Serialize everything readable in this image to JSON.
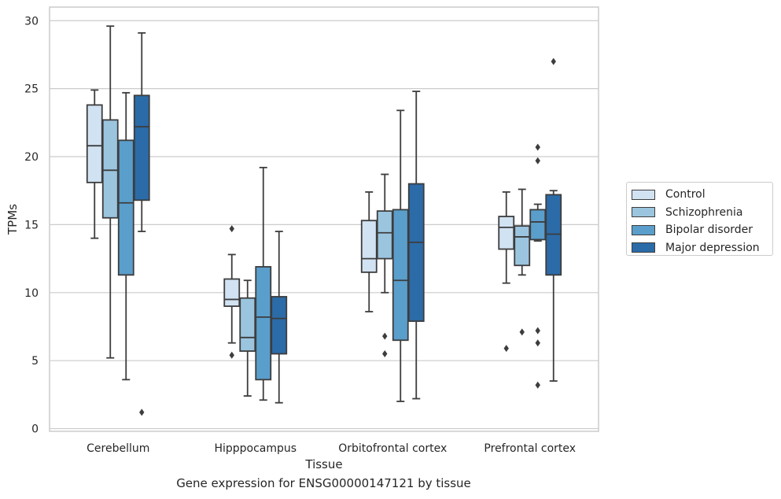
{
  "chart_data": {
    "type": "boxplot",
    "caption": "Gene expression for ENSG00000147121 by tissue",
    "xlabel": "Tissue",
    "ylabel": "TPMs",
    "ylim": [
      -0.2,
      31
    ],
    "yticks": [
      0,
      5,
      10,
      15,
      20,
      25,
      30
    ],
    "grid": true,
    "legend_position": "right",
    "categories": [
      "Cerebellum",
      "Hipppocampus",
      "Orbitofrontal cortex",
      "Prefrontal cortex"
    ],
    "series": [
      {
        "name": "Control",
        "color": "#d1e2f2",
        "boxes": [
          {
            "whisker_low": 14.0,
            "q1": 18.1,
            "median": 20.8,
            "q3": 23.8,
            "whisker_high": 24.9,
            "outliers": []
          },
          {
            "whisker_low": 6.3,
            "q1": 9.0,
            "median": 9.5,
            "q3": 11.0,
            "whisker_high": 12.8,
            "outliers": [
              14.7,
              5.4
            ]
          },
          {
            "whisker_low": 8.6,
            "q1": 11.5,
            "median": 12.5,
            "q3": 15.3,
            "whisker_high": 17.4,
            "outliers": []
          },
          {
            "whisker_low": 10.7,
            "q1": 13.2,
            "median": 14.8,
            "q3": 15.6,
            "whisker_high": 17.4,
            "outliers": [
              5.9
            ]
          }
        ]
      },
      {
        "name": "Schizophrenia",
        "color": "#9bc5df",
        "boxes": [
          {
            "whisker_low": 5.2,
            "q1": 15.5,
            "median": 19.0,
            "q3": 22.7,
            "whisker_high": 29.6,
            "outliers": []
          },
          {
            "whisker_low": 2.4,
            "q1": 5.7,
            "median": 6.7,
            "q3": 9.6,
            "whisker_high": 10.9,
            "outliers": []
          },
          {
            "whisker_low": 10.0,
            "q1": 12.5,
            "median": 14.4,
            "q3": 16.0,
            "whisker_high": 18.7,
            "outliers": [
              6.8,
              5.5
            ]
          },
          {
            "whisker_low": 11.3,
            "q1": 12.0,
            "median": 14.1,
            "q3": 14.9,
            "whisker_high": 17.6,
            "outliers": [
              7.1
            ]
          }
        ]
      },
      {
        "name": "Bipolar disorder",
        "color": "#5a9ecb",
        "boxes": [
          {
            "whisker_low": 3.6,
            "q1": 11.3,
            "median": 16.6,
            "q3": 21.2,
            "whisker_high": 24.7,
            "outliers": []
          },
          {
            "whisker_low": 2.1,
            "q1": 3.6,
            "median": 8.2,
            "q3": 11.9,
            "whisker_high": 19.2,
            "outliers": []
          },
          {
            "whisker_low": 2.0,
            "q1": 6.5,
            "median": 10.9,
            "q3": 16.1,
            "whisker_high": 23.4,
            "outliers": []
          },
          {
            "whisker_low": 13.8,
            "q1": 13.9,
            "median": 15.2,
            "q3": 16.1,
            "whisker_high": 16.5,
            "outliers": [
              20.7,
              19.7,
              7.2,
              6.3,
              3.2
            ]
          }
        ]
      },
      {
        "name": "Major depression",
        "color": "#2b6ba8",
        "boxes": [
          {
            "whisker_low": 14.5,
            "q1": 16.8,
            "median": 22.2,
            "q3": 24.5,
            "whisker_high": 29.1,
            "outliers": [
              1.2
            ]
          },
          {
            "whisker_low": 1.9,
            "q1": 5.5,
            "median": 8.1,
            "q3": 9.7,
            "whisker_high": 14.5,
            "outliers": []
          },
          {
            "whisker_low": 2.2,
            "q1": 7.9,
            "median": 13.7,
            "q3": 18.0,
            "whisker_high": 24.8,
            "outliers": []
          },
          {
            "whisker_low": 3.5,
            "q1": 11.3,
            "median": 14.3,
            "q3": 17.2,
            "whisker_high": 17.5,
            "outliers": [
              27.0
            ]
          }
        ]
      }
    ]
  }
}
